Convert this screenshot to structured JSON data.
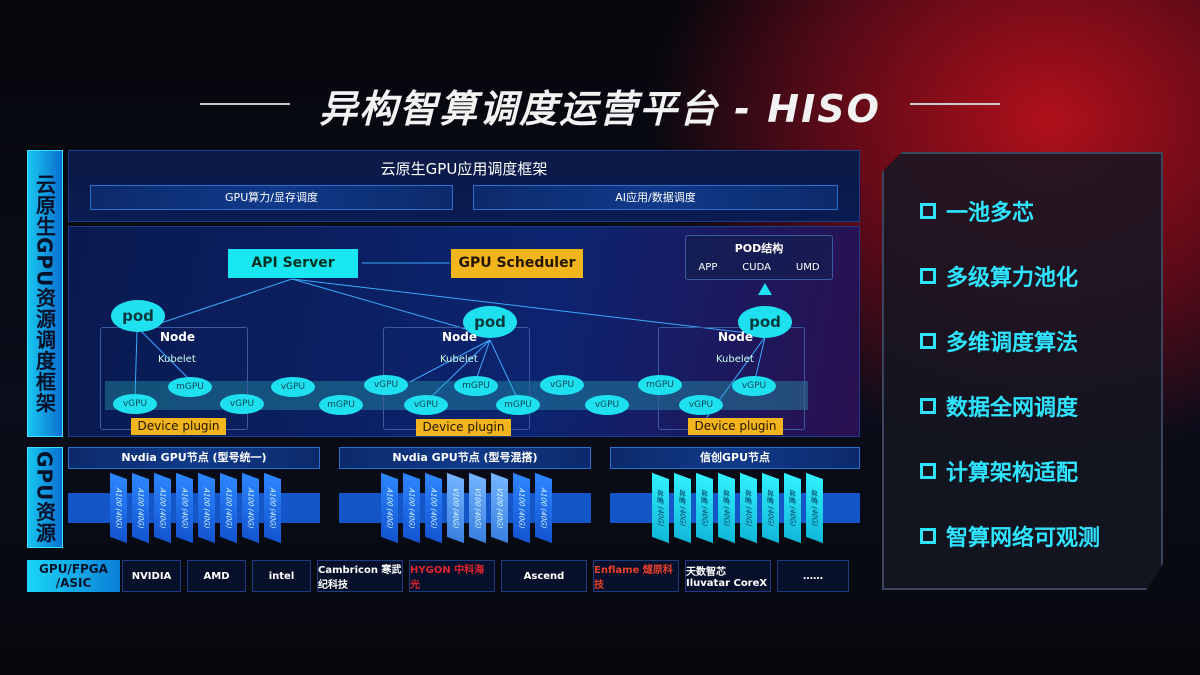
{
  "title": "异构智算调度运营平台 - HISO",
  "left_labels": {
    "scheduling": "云原生GPU资源调度框架",
    "gpu": "GPU资源",
    "hardware": "GPU/FPGA /ASIC"
  },
  "framework": {
    "title": "云原生GPU应用调度框架",
    "bars": [
      "GPU算力/显存调度",
      "AI应用/数据调度"
    ]
  },
  "api_server": "API Server",
  "gpu_scheduler": "GPU Scheduler",
  "pod_structure": {
    "title": "POD结构",
    "items": [
      "APP",
      "CUDA",
      "UMD"
    ]
  },
  "node": {
    "pod": "pod",
    "node": "Node",
    "kubelet": "Kubelet",
    "device_plugin": "Device plugin"
  },
  "vgpu": "vGPU",
  "mgpu": "mGPU",
  "gpu_nodes": [
    {
      "title": "Nvdia GPU节点 (型号统一)",
      "chips": [
        "A100 (40G)",
        "A100 (40G)",
        "A100 (40G)",
        "A100 (40G)",
        "A100 (40G)",
        "A100 (40G)",
        "A100 (40G)",
        "A100 (40G)"
      ]
    },
    {
      "title": "Nvdia GPU节点 (型号混搭)",
      "chips": [
        "A100 (40G)",
        "A100 (40G)",
        "A100 (40G)",
        "V100 (40G)",
        "V100 (40G)",
        "V100 (40G)",
        "A100 (40G)",
        "A100 (40G)"
      ]
    },
    {
      "title": "信创GPU节点",
      "chips": [
        "昇腾 (40G)",
        "昇腾 (40G)",
        "昇腾 (40G)",
        "昇腾 (40G)",
        "昇腾 (40G)",
        "昇腾 (40G)",
        "昇腾 (40G)",
        "昇腾 (40G)"
      ]
    }
  ],
  "vendors": [
    "NVIDIA",
    "AMD",
    "intel",
    "Cambricon 寒武纪科技",
    "HYGON 中科海光",
    "Ascend",
    "Enflame 燧原科技",
    "天数智芯 Iluvatar CoreX",
    "……"
  ],
  "features": [
    "一池多芯",
    "多级算力池化",
    "多维调度算法",
    "数据全网调度",
    "计算架构适配",
    "智算网络可观测"
  ],
  "colors": {
    "accent": "#18e6f0",
    "highlight": "#f2b51d",
    "panel": "#0b1a45"
  }
}
